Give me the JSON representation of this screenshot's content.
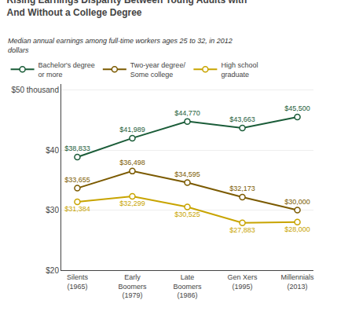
{
  "chart_data": {
    "type": "line",
    "title": "Rising Earnings Disparity Between Young Adults with\nAnd Without a College Degree",
    "subtitle": "Median annual earnings among full-time workers ages 25 to 32, in 2012\ndollars",
    "categories": [
      "Silents\n(1965)",
      "Early\nBoomers\n(1979)",
      "Late\nBoomers\n(1986)",
      "Gen Xers\n(1995)",
      "Millennials\n(2013)"
    ],
    "series": [
      {
        "name": "Bachelor's degree\nor more",
        "color": "#1a5c38",
        "values": [
          38833,
          41989,
          44770,
          43663,
          45500
        ],
        "value_labels": [
          "$38,833",
          "$41,989",
          "$44,770",
          "$43,663",
          "$45,500"
        ]
      },
      {
        "name": "Two-year degree/\nSome college",
        "color": "#7b5a00",
        "values": [
          33655,
          36498,
          34595,
          32173,
          30000
        ],
        "value_labels": [
          "$33,655",
          "$36,498",
          "$34,595",
          "$32,173",
          "$30,000"
        ]
      },
      {
        "name": "High school\ngraduate",
        "color": "#c8a400",
        "values": [
          31384,
          32299,
          30525,
          27883,
          28000
        ],
        "value_labels": [
          "$31,384",
          "$32,299",
          "$30,525",
          "$27,883",
          "$28,000"
        ]
      }
    ],
    "ylim": [
      20000,
      51000
    ],
    "yticks": [
      {
        "value": 20000,
        "label": "$20"
      },
      {
        "value": 30000,
        "label": "$30"
      },
      {
        "value": 40000,
        "label": "$40"
      },
      {
        "value": 50000,
        "label": "$50 thousand"
      }
    ],
    "grid": true,
    "legend": "upper left",
    "data_labels": true,
    "marker": "circle"
  }
}
